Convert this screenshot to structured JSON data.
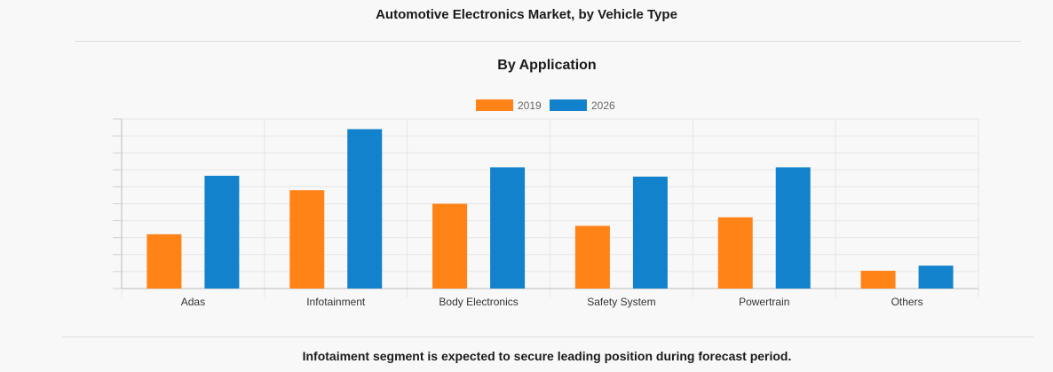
{
  "header": {
    "title": "Automotive Electronics Market, by Vehicle Type"
  },
  "footer": {
    "note": "Infotaiment segment is expected to secure leading position during forecast period."
  },
  "chart_data": {
    "type": "bar",
    "title": "By Application",
    "xlabel": "",
    "ylabel": "",
    "categories": [
      "Adas",
      "Infotainment",
      "Body Electronics",
      "Safety System",
      "Powertrain",
      "Others"
    ],
    "series": [
      {
        "name": "2019",
        "color": "#ff8316",
        "values": [
          3.2,
          5.8,
          5.0,
          3.7,
          4.2,
          1.05
        ]
      },
      {
        "name": "2026",
        "color": "#1282cc",
        "values": [
          6.65,
          9.4,
          7.15,
          6.6,
          7.15,
          1.35
        ]
      }
    ],
    "ylim": [
      0,
      10
    ],
    "gridlines": 10,
    "grid": true,
    "legend": "top-center",
    "y_tick_labels_visible": false
  }
}
